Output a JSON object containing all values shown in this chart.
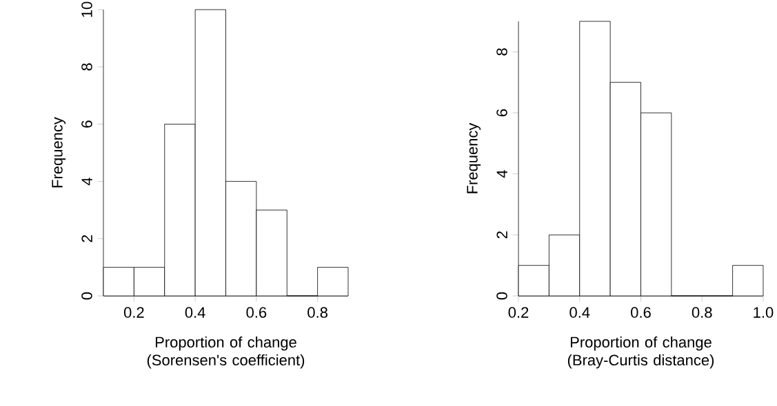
{
  "chart_data": [
    {
      "type": "histogram",
      "bins": [
        0.1,
        0.2,
        0.3,
        0.4,
        0.5,
        0.6,
        0.7,
        0.8,
        0.9
      ],
      "values": [
        1,
        1,
        6,
        10,
        4,
        3,
        0,
        1
      ],
      "color": "#ffffff",
      "xlim": [
        0.1,
        0.9
      ],
      "ylim": [
        0,
        10
      ],
      "xticks": [
        0.2,
        0.4,
        0.6,
        0.8
      ],
      "yticks": [
        0,
        2,
        4,
        6,
        8,
        10
      ],
      "xlabel": "Proportion of change (Sorensen's coefficient)",
      "ylabel": "Frequency",
      "grid": false
    },
    {
      "type": "histogram",
      "bins": [
        0.2,
        0.3,
        0.4,
        0.5,
        0.6,
        0.7,
        0.8,
        0.9,
        1.0
      ],
      "values": [
        1,
        2,
        9,
        7,
        6,
        0,
        0,
        1
      ],
      "color": "#ffffff",
      "xlim": [
        0.2,
        1.0
      ],
      "ylim": [
        0,
        9
      ],
      "xticks": [
        0.2,
        0.4,
        0.6,
        0.8,
        {
          "value": 1.0,
          "label": "1.0"
        }
      ],
      "yticks": [
        0,
        2,
        4,
        6,
        8
      ],
      "xlabel": "Proportion of change (Bray-Curtis distance)",
      "ylabel": "Frequency",
      "grid": false
    }
  ]
}
